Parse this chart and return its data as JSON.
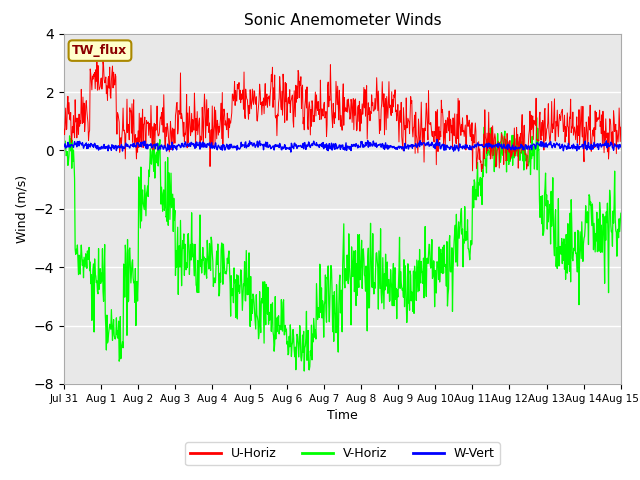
{
  "title": "Sonic Anemometer Winds",
  "xlabel": "Time",
  "ylabel": "Wind (m/s)",
  "ylim": [
    -8,
    4
  ],
  "yticks": [
    -8,
    -6,
    -4,
    -2,
    0,
    2,
    4
  ],
  "xlim": [
    0,
    15
  ],
  "xtick_labels": [
    "Jul 31",
    "Aug 1",
    "Aug 2",
    "Aug 3",
    "Aug 4",
    "Aug 5",
    "Aug 6",
    "Aug 7",
    "Aug 8",
    "Aug 9",
    "Aug 10",
    "Aug 11",
    "Aug 12",
    "Aug 13",
    "Aug 14",
    "Aug 15"
  ],
  "annotation_text": "TW_flux",
  "fig_bg_color": "#ffffff",
  "plot_bg_color": "#e8e8e8",
  "u_color": "#ff0000",
  "v_color": "#00ff00",
  "w_color": "#0000ff",
  "legend_labels": [
    "U-Horiz",
    "V-Horiz",
    "W-Vert"
  ],
  "seed": 42
}
